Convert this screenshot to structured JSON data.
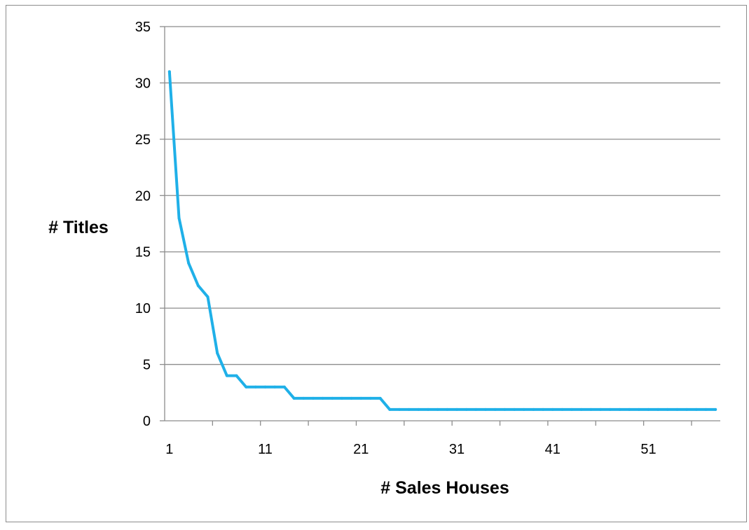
{
  "chart_data": {
    "type": "line",
    "xlabel": "# Sales Houses",
    "ylabel": "# Titles",
    "xlim": [
      0.5,
      58.5
    ],
    "ylim": [
      0,
      35
    ],
    "yticks": [
      0,
      5,
      10,
      15,
      20,
      25,
      30,
      35
    ],
    "xticks": [
      1,
      11,
      21,
      31,
      41,
      51
    ],
    "grid": true,
    "line_color": "#1fb0e8",
    "axis_color": "#8c8c8c",
    "x": [
      1,
      2,
      3,
      4,
      5,
      6,
      7,
      8,
      9,
      10,
      11,
      12,
      13,
      14,
      15,
      16,
      17,
      18,
      19,
      20,
      21,
      22,
      23,
      24,
      25,
      26,
      27,
      28,
      29,
      30,
      31,
      32,
      33,
      34,
      35,
      36,
      37,
      38,
      39,
      40,
      41,
      42,
      43,
      44,
      45,
      46,
      47,
      48,
      49,
      50,
      51,
      52,
      53,
      54,
      55,
      56,
      57,
      58
    ],
    "values": [
      31,
      18,
      14,
      12,
      11,
      6,
      4,
      4,
      3,
      3,
      3,
      3,
      3,
      2,
      2,
      2,
      2,
      2,
      2,
      2,
      2,
      2,
      2,
      1,
      1,
      1,
      1,
      1,
      1,
      1,
      1,
      1,
      1,
      1,
      1,
      1,
      1,
      1,
      1,
      1,
      1,
      1,
      1,
      1,
      1,
      1,
      1,
      1,
      1,
      1,
      1,
      1,
      1,
      1,
      1,
      1,
      1,
      1
    ]
  }
}
